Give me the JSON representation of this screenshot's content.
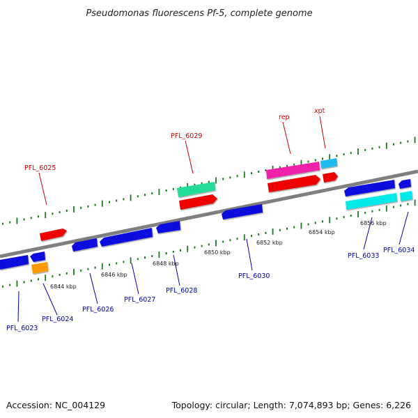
{
  "title": "Pseudomonas fluorescens Pf-5, complete genome",
  "footer": {
    "accession": "Accession: NC_004129",
    "summary": "Topology: circular; Length: 7,074,893 bp; Genes: 6,226"
  },
  "kbp_labels": [
    "6844 kbp",
    "6846 kbp",
    "6848 kbp",
    "6850 kbp",
    "6852 kbp",
    "6854 kbp",
    "6856 kbp"
  ],
  "gene_labels": {
    "forward": [
      "PFL_6025",
      "PFL_6029",
      "rep",
      "xpt"
    ],
    "reverse": [
      "PFL_6023",
      "PFL_6024",
      "PFL_6026",
      "PFL_6027",
      "PFL_6028",
      "PFL_6030",
      "PFL_6033",
      "PFL_6034"
    ]
  },
  "colors": {
    "forward_label": "#cc0000",
    "reverse_label": "#0000aa",
    "backbone": "#7f7f7f",
    "ticks": "#1a7a1a",
    "cds_red": "#ee0000",
    "cds_blue": "#1010dd",
    "rrna_green": "#22dd99",
    "rep_pink": "#ee22aa",
    "cyan": "#00e8e8",
    "lightblue": "#22bbee",
    "orange": "#ff9900"
  }
}
